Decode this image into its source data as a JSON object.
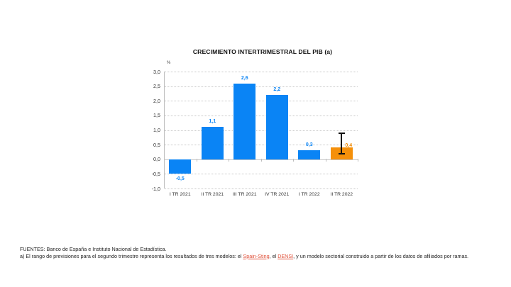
{
  "chart_data": {
    "type": "bar",
    "title": "CRECIMIENTO INTERTRIMESTRAL DEL PIB (a)",
    "ylabel": "%",
    "xlabel": "",
    "ylim": [
      -1.0,
      3.0
    ],
    "yticks": [
      "3,0",
      "2,5",
      "2,0",
      "1,5",
      "1,0",
      "0,5",
      "0,0",
      "-0,5",
      "-1,0"
    ],
    "grid": true,
    "legend": null,
    "categories": [
      "I TR 2021",
      "II TR 2021",
      "III TR 2021",
      "IV TR 2021",
      "I TR 2022",
      "II TR 2022"
    ],
    "values": [
      -0.5,
      1.1,
      2.6,
      2.2,
      0.3,
      0.4
    ],
    "value_labels": [
      "-0,5",
      "1,1",
      "2,6",
      "2,2",
      "0,3",
      "0,4"
    ],
    "bar_colors": [
      "#0a84f5",
      "#0a84f5",
      "#0a84f5",
      "#0a84f5",
      "#0a84f5",
      "#f5900a"
    ],
    "error_bar": {
      "category": "II TR 2022",
      "low": 0.2,
      "high": 0.9
    }
  },
  "colors": {
    "actual": "#0a84f5",
    "forecast": "#f5900a",
    "link": "#e0513a"
  },
  "footnotes": {
    "sources": "FUENTES: Banco de España e Instituto Nacional de Estadística.",
    "note_prefix": "a) El rango de previsiones para el segundo trimestre representa los resultados de tres modelos: el ",
    "link1": "Spain-Sting",
    "sep": ", el ",
    "link2": "DENSI",
    "note_suffix": ", y un modelo sectorial construido a partir de los datos de afiliados por ramas."
  }
}
